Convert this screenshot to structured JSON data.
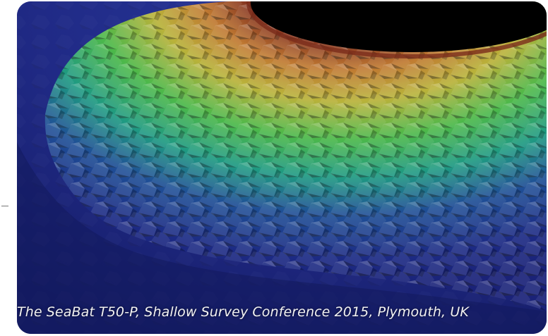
{
  "image": {
    "caption": "The SeaBat T50-P, Shallow Survey Conference 2015, Plymouth, UK",
    "subject": "multibeam-sonar-point-cloud",
    "colors": {
      "seabed": "#1e2a86",
      "seabed_dark": "#121a5c",
      "deep_blue": "#1f3a8c",
      "teal": "#1f8f8a",
      "green": "#3fb34a",
      "yellow": "#b5b43a",
      "orange": "#c07a32",
      "red_brown": "#8a3a22",
      "void": "#000000"
    }
  }
}
